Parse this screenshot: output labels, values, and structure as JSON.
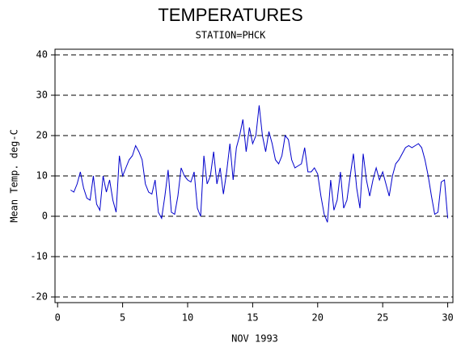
{
  "chart_data": {
    "type": "line",
    "title": "TEMPERATURES",
    "subtitle": "STATION=PHCK",
    "x_label": "NOV 1993",
    "y_label": "Mean Temp. deg-C",
    "xlim": [
      -0.2,
      30.4
    ],
    "ylim": [
      -21.4,
      41.4
    ],
    "xticks": [
      0,
      5,
      10,
      15,
      20,
      25,
      30
    ],
    "yticks": [
      -20,
      -10,
      0,
      10,
      20,
      30,
      40
    ],
    "grid": true,
    "x": [
      1,
      1.25,
      1.5,
      1.75,
      2,
      2.25,
      2.5,
      2.75,
      3,
      3.25,
      3.5,
      3.75,
      4,
      4.25,
      4.5,
      4.75,
      5,
      5.25,
      5.5,
      5.75,
      6,
      6.25,
      6.5,
      6.75,
      7,
      7.25,
      7.5,
      7.75,
      8,
      8.25,
      8.5,
      8.75,
      9,
      9.25,
      9.5,
      9.75,
      10,
      10.25,
      10.5,
      10.75,
      11,
      11.25,
      11.5,
      11.75,
      12,
      12.25,
      12.5,
      12.75,
      13,
      13.25,
      13.5,
      13.75,
      14,
      14.25,
      14.5,
      14.75,
      15,
      15.25,
      15.5,
      15.75,
      16,
      16.25,
      16.5,
      16.75,
      17,
      17.25,
      17.5,
      17.75,
      18,
      18.25,
      18.5,
      18.75,
      19,
      19.25,
      19.5,
      19.75,
      20,
      20.25,
      20.5,
      20.75,
      21,
      21.25,
      21.5,
      21.75,
      22,
      22.25,
      22.5,
      22.75,
      23,
      23.25,
      23.5,
      23.75,
      24,
      24.25,
      24.5,
      24.75,
      25,
      25.25,
      25.5,
      25.75,
      26,
      26.25,
      26.5,
      26.75,
      27,
      27.25,
      27.5,
      27.75,
      28,
      28.25,
      28.5,
      28.75,
      29,
      29.25,
      29.5,
      29.75,
      30
    ],
    "series": [
      {
        "color": "#0000cc",
        "values": [
          6.5,
          6,
          8,
          11,
          7,
          4.5,
          4,
          10,
          3,
          1.5,
          10,
          6,
          9,
          4,
          1,
          15,
          10,
          12,
          14,
          15,
          17.5,
          16,
          14,
          8,
          6,
          5.5,
          9,
          1,
          -0.5,
          5,
          11.5,
          1,
          0.5,
          5,
          12,
          10,
          9,
          8.5,
          11,
          2,
          0,
          15,
          8,
          10,
          16,
          8,
          12,
          5.5,
          11,
          18,
          9,
          17,
          20,
          24,
          16,
          22,
          18,
          20,
          27.5,
          20,
          16,
          21,
          18,
          14,
          13,
          15,
          20,
          19,
          14,
          12,
          12.5,
          13,
          17,
          11,
          11,
          12,
          10.5,
          5,
          0.5,
          -1.5,
          9,
          1.5,
          4,
          11,
          2,
          4,
          10,
          15.5,
          7,
          2,
          15.5,
          9,
          5,
          9,
          12,
          9,
          11,
          8,
          5,
          10,
          13,
          14,
          15.5,
          17,
          17.5,
          17,
          17.5,
          18,
          17,
          14,
          10,
          5,
          0.5,
          1,
          8.5,
          9,
          -0.5
        ]
      }
    ]
  }
}
